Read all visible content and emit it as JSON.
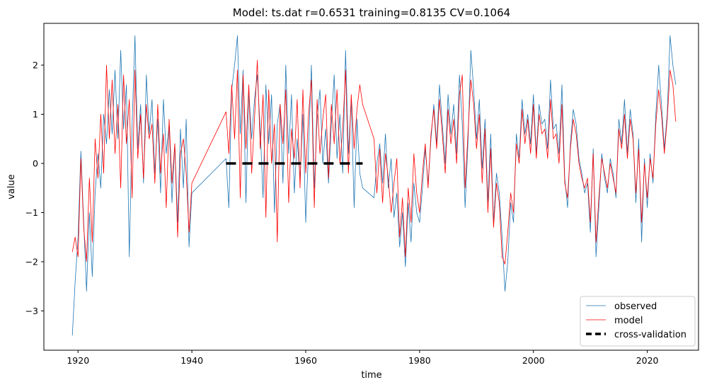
{
  "chart_data": {
    "type": "line",
    "title": "Model: ts.dat  r=0.6531  training=0.8135  CV=0.1064",
    "xlabel": "time",
    "ylabel": "value",
    "xlim": [
      1914,
      2029
    ],
    "ylim": [
      -3.8,
      2.85
    ],
    "x_ticks": [
      1920,
      1940,
      1960,
      1980,
      2000,
      2020
    ],
    "y_ticks": [
      -3,
      -2,
      -1,
      0,
      1,
      2
    ],
    "x_tick_labels": [
      "1920",
      "1940",
      "1960",
      "1980",
      "2000",
      "2020"
    ],
    "y_tick_labels": [
      "−3",
      "−2",
      "−1",
      "0",
      "1",
      "2"
    ],
    "legend_position": "lower-right",
    "series": [
      {
        "name": "observed",
        "color": "#1f77b4",
        "x": [
          1919.0,
          1919.5,
          1920.0,
          1920.5,
          1921.0,
          1921.5,
          1922.0,
          1922.5,
          1923.0,
          1923.5,
          1924.0,
          1924.5,
          1925.0,
          1925.5,
          1926.0,
          1926.5,
          1927.0,
          1927.5,
          1928.0,
          1928.5,
          1929.0,
          1929.5,
          1930.0,
          1930.5,
          1931.0,
          1931.5,
          1932.0,
          1932.5,
          1933.0,
          1933.5,
          1934.0,
          1934.5,
          1935.0,
          1935.5,
          1936.0,
          1936.5,
          1937.0,
          1937.5,
          1938.0,
          1938.5,
          1939.0,
          1939.5,
          1940.0,
          1946.0,
          1946.5,
          1947.0,
          1947.5,
          1948.0,
          1948.5,
          1949.0,
          1949.5,
          1950.0,
          1950.5,
          1951.0,
          1951.5,
          1952.0,
          1952.5,
          1953.0,
          1953.5,
          1954.0,
          1954.5,
          1955.0,
          1955.5,
          1956.0,
          1956.5,
          1957.0,
          1957.5,
          1958.0,
          1958.5,
          1959.0,
          1959.5,
          1960.0,
          1960.5,
          1961.0,
          1961.5,
          1962.0,
          1962.5,
          1963.0,
          1963.5,
          1964.0,
          1964.5,
          1965.0,
          1965.5,
          1966.0,
          1966.5,
          1967.0,
          1967.5,
          1968.0,
          1968.5,
          1969.0,
          1969.5,
          1970.0,
          1972.0,
          1972.5,
          1973.0,
          1973.5,
          1974.0,
          1974.5,
          1975.0,
          1975.5,
          1976.0,
          1976.5,
          1977.0,
          1977.5,
          1978.0,
          1978.5,
          1979.0,
          1979.5,
          1980.0,
          1980.5,
          1981.0,
          1981.5,
          1982.0,
          1982.5,
          1983.0,
          1983.5,
          1984.0,
          1984.5,
          1985.0,
          1985.5,
          1986.0,
          1986.5,
          1987.0,
          1987.5,
          1988.0,
          1988.5,
          1989.0,
          1989.5,
          1990.0,
          1990.5,
          1991.0,
          1991.5,
          1992.0,
          1992.5,
          1993.0,
          1993.5,
          1994.0,
          1994.5,
          1995.0,
          1995.5,
          1996.0,
          1996.5,
          1997.0,
          1997.5,
          1998.0,
          1998.5,
          1999.0,
          1999.5,
          2000.0,
          2000.5,
          2001.0,
          2001.5,
          2002.0,
          2002.5,
          2003.0,
          2003.5,
          2004.0,
          2004.5,
          2005.0,
          2005.5,
          2006.0,
          2006.5,
          2007.0,
          2007.5,
          2008.0,
          2008.5,
          2009.0,
          2009.5,
          2010.0,
          2010.5,
          2011.0,
          2011.5,
          2012.0,
          2012.5,
          2013.0,
          2013.5,
          2014.0,
          2014.5,
          2015.0,
          2015.5,
          2016.0,
          2016.5,
          2017.0,
          2017.5,
          2018.0,
          2018.5,
          2019.0,
          2019.5,
          2020.0,
          2020.5,
          2021.0,
          2021.5,
          2022.0,
          2022.5,
          2023.0,
          2023.5,
          2024.0,
          2024.5,
          2025.0
        ],
        "y": [
          -3.5,
          -2.4,
          -1.5,
          0.25,
          -1.2,
          -2.6,
          -1.0,
          -2.3,
          -0.6,
          0.2,
          -0.5,
          1.0,
          0.4,
          1.5,
          0.6,
          1.9,
          0.5,
          2.3,
          0.7,
          1.6,
          -1.9,
          0.8,
          2.6,
          0.3,
          1.2,
          -0.4,
          1.8,
          0.6,
          1.3,
          -0.2,
          0.9,
          -0.6,
          1.3,
          0.2,
          0.8,
          -0.8,
          0.4,
          -1.2,
          0.7,
          -0.5,
          0.9,
          -1.7,
          -0.6,
          0.1,
          -0.9,
          1.5,
          2.0,
          2.6,
          0.6,
          1.9,
          -0.8,
          1.5,
          0.5,
          1.3,
          1.8,
          0.7,
          -0.7,
          1.6,
          0.4,
          1.4,
          -1.0,
          0.8,
          1.2,
          -0.4,
          2.0,
          0.2,
          1.4,
          -0.6,
          0.5,
          -0.3,
          1.0,
          -1.2,
          0.3,
          2.0,
          -0.5,
          0.9,
          1.5,
          0.0,
          0.7,
          -0.4,
          0.8,
          1.8,
          0.1,
          1.0,
          -0.2,
          2.3,
          0.2,
          1.3,
          -0.9,
          0.9,
          -0.2,
          -0.5,
          -0.7,
          0.0,
          0.4,
          -0.4,
          0.6,
          -0.5,
          0.1,
          -1.1,
          -0.6,
          -1.7,
          -1.0,
          -2.1,
          -0.8,
          -1.6,
          -0.4,
          -1.0,
          -1.2,
          -0.5,
          0.3,
          -0.4,
          0.5,
          1.2,
          0.4,
          1.6,
          0.8,
          0.0,
          1.4,
          0.6,
          1.2,
          0.2,
          1.8,
          0.8,
          -0.9,
          0.4,
          2.3,
          1.5,
          0.5,
          1.3,
          -0.1,
          0.9,
          -0.8,
          0.6,
          -1.2,
          -0.2,
          -0.6,
          -1.5,
          -2.6,
          -2.0,
          -0.8,
          -1.2,
          0.6,
          0.1,
          1.3,
          0.6,
          1.0,
          0.4,
          1.4,
          0.2,
          1.2,
          0.8,
          0.9,
          0.3,
          1.7,
          0.7,
          0.8,
          0.2,
          1.6,
          -0.3,
          -0.9,
          0.4,
          1.1,
          0.8,
          0.1,
          -0.2,
          -0.6,
          -0.4,
          -1.4,
          0.3,
          -1.9,
          -0.9,
          0.2,
          -0.3,
          -0.6,
          0.1,
          -0.2,
          -0.7,
          0.9,
          0.4,
          1.3,
          0.2,
          1.1,
          0.6,
          -0.8,
          0.5,
          -1.6,
          0.1,
          -0.9,
          0.2,
          -0.4,
          1.0,
          2.0,
          1.2,
          0.3,
          1.0,
          2.6,
          2.0,
          1.6
        ]
      },
      {
        "name": "model",
        "color": "#ff0000",
        "x": [
          1919.0,
          1919.5,
          1920.0,
          1920.5,
          1921.0,
          1921.5,
          1922.0,
          1922.5,
          1923.0,
          1923.5,
          1924.0,
          1924.5,
          1925.0,
          1925.5,
          1926.0,
          1926.5,
          1927.0,
          1927.5,
          1928.0,
          1928.5,
          1929.0,
          1929.5,
          1930.0,
          1930.5,
          1931.0,
          1931.5,
          1932.0,
          1932.5,
          1933.0,
          1933.5,
          1934.0,
          1934.5,
          1935.0,
          1935.5,
          1936.0,
          1936.5,
          1937.0,
          1937.5,
          1938.0,
          1938.5,
          1939.0,
          1939.5,
          1940.0,
          1946.0,
          1946.5,
          1947.0,
          1947.5,
          1948.0,
          1948.5,
          1949.0,
          1949.5,
          1950.0,
          1950.5,
          1951.0,
          1951.5,
          1952.0,
          1952.5,
          1953.0,
          1953.5,
          1954.0,
          1954.5,
          1955.0,
          1955.5,
          1956.0,
          1956.5,
          1957.0,
          1957.5,
          1958.0,
          1958.5,
          1959.0,
          1959.5,
          1960.0,
          1960.5,
          1961.0,
          1961.5,
          1962.0,
          1962.5,
          1963.0,
          1963.5,
          1964.0,
          1964.5,
          1965.0,
          1965.5,
          1966.0,
          1966.5,
          1967.0,
          1967.5,
          1968.0,
          1968.5,
          1969.0,
          1969.5,
          1970.0,
          1972.0,
          1972.5,
          1973.0,
          1973.5,
          1974.0,
          1974.5,
          1975.0,
          1975.5,
          1976.0,
          1976.5,
          1977.0,
          1977.5,
          1978.0,
          1978.5,
          1979.0,
          1979.5,
          1980.0,
          1980.5,
          1981.0,
          1981.5,
          1982.0,
          1982.5,
          1983.0,
          1983.5,
          1984.0,
          1984.5,
          1985.0,
          1985.5,
          1986.0,
          1986.5,
          1987.0,
          1987.5,
          1988.0,
          1988.5,
          1989.0,
          1989.5,
          1990.0,
          1990.5,
          1991.0,
          1991.5,
          1992.0,
          1992.5,
          1993.0,
          1993.5,
          1994.0,
          1994.5,
          1995.0,
          1995.5,
          1996.0,
          1996.5,
          1997.0,
          1997.5,
          1998.0,
          1998.5,
          1999.0,
          1999.5,
          2000.0,
          2000.5,
          2001.0,
          2001.5,
          2002.0,
          2002.5,
          2003.0,
          2003.5,
          2004.0,
          2004.5,
          2005.0,
          2005.5,
          2006.0,
          2006.5,
          2007.0,
          2007.5,
          2008.0,
          2008.5,
          2009.0,
          2009.5,
          2010.0,
          2010.5,
          2011.0,
          2011.5,
          2012.0,
          2012.5,
          2013.0,
          2013.5,
          2014.0,
          2014.5,
          2015.0,
          2015.5,
          2016.0,
          2016.5,
          2017.0,
          2017.5,
          2018.0,
          2018.5,
          2019.0,
          2019.5,
          2020.0,
          2020.5,
          2021.0,
          2021.5,
          2022.0,
          2022.5,
          2023.0,
          2023.5,
          2024.0,
          2024.5,
          2025.0
        ],
        "y": [
          -1.8,
          -1.5,
          -1.9,
          0.1,
          -1.3,
          -2.0,
          -0.3,
          -1.6,
          0.5,
          -0.3,
          1.0,
          -0.2,
          2.0,
          0.5,
          1.7,
          0.2,
          1.2,
          -0.5,
          1.8,
          0.4,
          1.3,
          -0.7,
          1.9,
          0.1,
          1.0,
          -0.3,
          1.2,
          0.5,
          0.8,
          -0.4,
          1.2,
          -0.2,
          0.6,
          -0.9,
          0.9,
          -0.4,
          0.4,
          -1.5,
          0.2,
          0.5,
          -0.2,
          -1.4,
          -0.4,
          1.05,
          0.2,
          1.6,
          0.5,
          1.9,
          -0.7,
          1.8,
          0.3,
          1.6,
          -0.2,
          0.9,
          2.1,
          0.3,
          1.4,
          -1.1,
          1.5,
          0.0,
          0.8,
          -1.6,
          1.2,
          0.4,
          1.5,
          -0.8,
          0.7,
          0.1,
          1.3,
          -0.5,
          1.5,
          -0.2,
          1.0,
          1.7,
          -0.9,
          1.3,
          0.2,
          0.9,
          1.4,
          -0.3,
          1.2,
          0.4,
          1.5,
          0.0,
          0.7,
          1.9,
          -0.2,
          1.4,
          0.3,
          1.1,
          1.6,
          1.2,
          0.5,
          -0.6,
          0.3,
          -0.8,
          0.2,
          -0.3,
          -1.0,
          -0.4,
          0.1,
          -1.5,
          -0.7,
          -1.9,
          -0.5,
          -1.2,
          0.2,
          -0.6,
          -1.0,
          -0.2,
          0.4,
          -0.5,
          0.6,
          1.1,
          0.3,
          1.3,
          0.6,
          -0.2,
          1.1,
          0.4,
          0.9,
          0.0,
          1.4,
          1.8,
          -0.5,
          0.6,
          1.7,
          1.2,
          0.3,
          1.0,
          -0.4,
          0.7,
          -1.0,
          0.3,
          -1.3,
          -0.4,
          -0.8,
          -1.9,
          -2.05,
          -1.4,
          -0.6,
          -1.0,
          0.4,
          0.0,
          1.1,
          0.4,
          0.9,
          0.2,
          1.2,
          0.1,
          1.0,
          0.6,
          0.7,
          0.1,
          1.3,
          0.5,
          0.6,
          0.0,
          1.2,
          -0.4,
          -0.7,
          0.3,
          0.9,
          0.6,
          0.0,
          -0.3,
          -0.5,
          -0.3,
          -1.2,
          0.2,
          -1.6,
          -0.7,
          0.1,
          -0.2,
          -0.5,
          0.0,
          -0.3,
          -0.6,
          0.7,
          0.3,
          1.0,
          0.1,
          0.9,
          0.5,
          -0.6,
          0.3,
          -1.2,
          0.0,
          -0.7,
          0.1,
          -0.3,
          0.8,
          1.5,
          1.0,
          0.2,
          0.9,
          1.9,
          1.6,
          0.85
        ]
      },
      {
        "name": "cross-validation",
        "color": "#000000",
        "x": [
          1946.0,
          1970.0
        ],
        "y": [
          0.0,
          0.0
        ]
      }
    ]
  }
}
